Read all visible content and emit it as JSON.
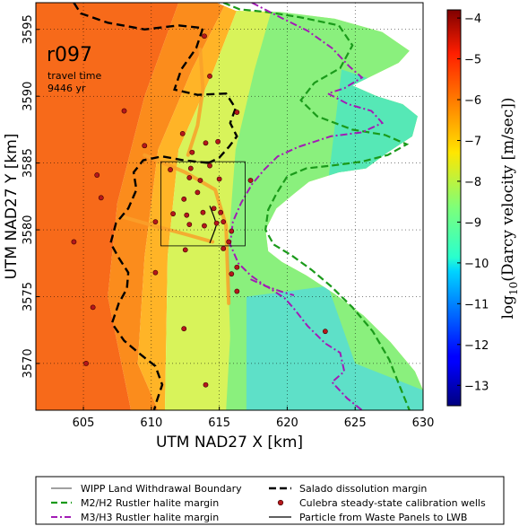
{
  "chart_data": {
    "type": "heatmap",
    "title": "",
    "xlabel": "UTM NAD27 X [km]",
    "ylabel": "UTM NAD27 Y [km]",
    "xlim": [
      601.5,
      630
    ],
    "ylim": [
      3566.5,
      3597
    ],
    "x_ticks": [
      605,
      610,
      615,
      620,
      625,
      630
    ],
    "y_ticks": [
      3570,
      3575,
      3580,
      3585,
      3590,
      3595
    ],
    "grid": true,
    "annotation": {
      "run_id": "r097",
      "line1": "travel time",
      "line2": "9446 yr"
    },
    "colorbar": {
      "label": "log10(Darcy velocity [m/sec])",
      "label_main": "log",
      "label_sub": "10",
      "label_rest": "(Darcy velocity [m/sec])",
      "min": -13.5,
      "max": -3.8,
      "ticks": [
        -4,
        -5,
        -6,
        -7,
        -8,
        -9,
        -10,
        -11,
        -12,
        -13
      ],
      "tick_labels": [
        "−4",
        "−5",
        "−6",
        "−7",
        "−8",
        "−9",
        "−10",
        "−11",
        "−12",
        "−13"
      ],
      "colormap": "jet"
    },
    "wipp_boundary": {
      "x": [
        610.7,
        616.9
      ],
      "y": [
        3578.8,
        3585.1
      ]
    },
    "wells": [
      [
        613.9,
        3594.5
      ],
      [
        614.3,
        3591.5
      ],
      [
        616.3,
        3588.8
      ],
      [
        608.0,
        3588.9
      ],
      [
        612.3,
        3587.2
      ],
      [
        614.0,
        3586.5
      ],
      [
        614.9,
        3586.6
      ],
      [
        609.5,
        3586.3
      ],
      [
        613.0,
        3585.8
      ],
      [
        611.4,
        3584.5
      ],
      [
        612.9,
        3584.6
      ],
      [
        614.3,
        3584.8
      ],
      [
        612.8,
        3583.9
      ],
      [
        613.6,
        3583.7
      ],
      [
        615.0,
        3583.8
      ],
      [
        617.3,
        3583.7
      ],
      [
        613.4,
        3582.8
      ],
      [
        612.4,
        3582.3
      ],
      [
        611.6,
        3581.2
      ],
      [
        612.6,
        3581.1
      ],
      [
        613.8,
        3581.3
      ],
      [
        614.6,
        3581.6
      ],
      [
        615.1,
        3581.3
      ],
      [
        612.8,
        3580.4
      ],
      [
        613.9,
        3580.3
      ],
      [
        614.8,
        3580.5
      ],
      [
        615.3,
        3580.6
      ],
      [
        606.3,
        3582.4
      ],
      [
        606.0,
        3584.1
      ],
      [
        604.3,
        3579.1
      ],
      [
        610.3,
        3580.6
      ],
      [
        615.9,
        3579.9
      ],
      [
        615.7,
        3579.1
      ],
      [
        615.3,
        3578.6
      ],
      [
        612.5,
        3578.5
      ],
      [
        616.3,
        3577.2
      ],
      [
        615.9,
        3576.7
      ],
      [
        616.3,
        3575.4
      ],
      [
        610.3,
        3576.8
      ],
      [
        605.7,
        3574.2
      ],
      [
        612.4,
        3572.6
      ],
      [
        605.2,
        3570.0
      ],
      [
        614.0,
        3568.4
      ],
      [
        622.8,
        3572.4
      ]
    ],
    "particle_path": [
      [
        614.3,
        3581.8
      ],
      [
        614.6,
        3581.0
      ],
      [
        614.8,
        3580.4
      ],
      [
        614.6,
        3579.8
      ],
      [
        614.3,
        3579.0
      ]
    ]
  },
  "legend": {
    "items": [
      {
        "label": "WIPP Land Withdrawal Boundary"
      },
      {
        "label": "Salado dissolution margin"
      },
      {
        "label": "M2/H2 Rustler halite margin"
      },
      {
        "label": "Culebra steady-state calibration wells"
      },
      {
        "label": "M3/H3 Rustler halite margin"
      },
      {
        "label": "Particle from Waste Panels to LWB"
      }
    ]
  },
  "colors": {
    "salado": "#000000",
    "m2h2": "#1a9a1a",
    "m3h3": "#a21cb5",
    "well_fill": "#b5171b",
    "well_edge": "#3a0000"
  }
}
